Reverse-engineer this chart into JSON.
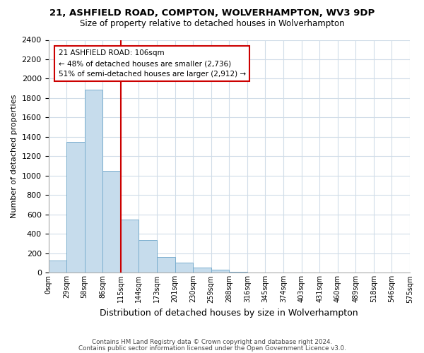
{
  "title1": "21, ASHFIELD ROAD, COMPTON, WOLVERHAMPTON, WV3 9DP",
  "title2": "Size of property relative to detached houses in Wolverhampton",
  "xlabel": "Distribution of detached houses by size in Wolverhampton",
  "ylabel": "Number of detached properties",
  "bar_color": "#c6dcec",
  "bar_edge_color": "#7aaece",
  "bin_labels": [
    "0sqm",
    "29sqm",
    "58sqm",
    "86sqm",
    "115sqm",
    "144sqm",
    "173sqm",
    "201sqm",
    "230sqm",
    "259sqm",
    "288sqm",
    "316sqm",
    "345sqm",
    "374sqm",
    "403sqm",
    "431sqm",
    "460sqm",
    "489sqm",
    "518sqm",
    "546sqm",
    "575sqm"
  ],
  "bar_heights": [
    125,
    1350,
    1890,
    1050,
    550,
    335,
    160,
    105,
    55,
    30,
    10,
    5,
    2,
    1,
    0,
    0,
    0,
    0,
    0,
    0
  ],
  "vline_x": 4,
  "vline_color": "#cc0000",
  "annotation_title": "21 ASHFIELD ROAD: 106sqm",
  "annotation_line1": "← 48% of detached houses are smaller (2,736)",
  "annotation_line2": "51% of semi-detached houses are larger (2,912) →",
  "annotation_box_color": "#ffffff",
  "annotation_box_edge_color": "#cc0000",
  "ylim": [
    0,
    2400
  ],
  "yticks": [
    0,
    200,
    400,
    600,
    800,
    1000,
    1200,
    1400,
    1600,
    1800,
    2000,
    2200,
    2400
  ],
  "footer1": "Contains HM Land Registry data © Crown copyright and database right 2024.",
  "footer2": "Contains public sector information licensed under the Open Government Licence v3.0.",
  "bg_color": "#ffffff",
  "grid_color": "#d0dce8"
}
